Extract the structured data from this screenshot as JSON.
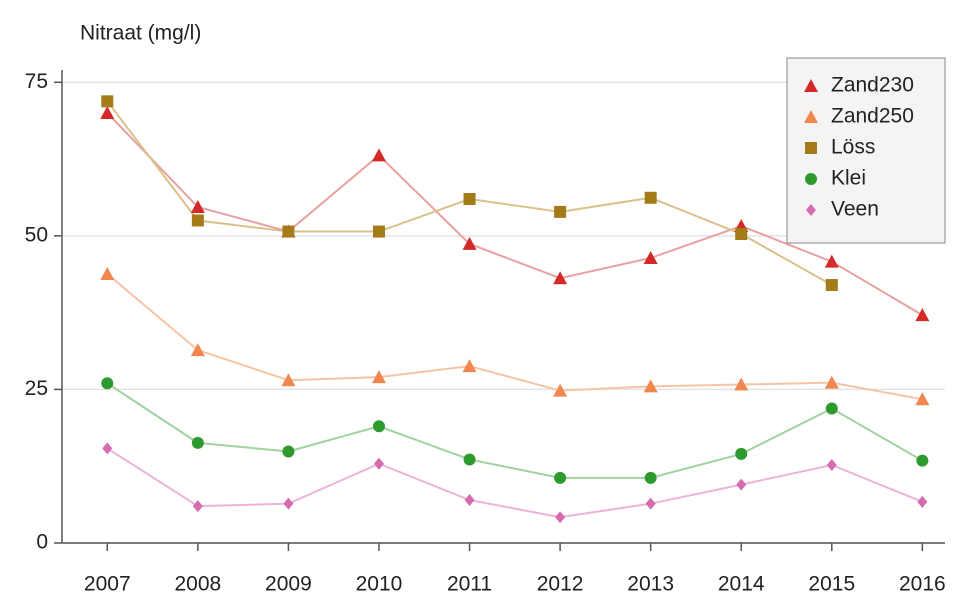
{
  "chart_data": {
    "type": "line",
    "ylabel": "Nitraat (mg/l)",
    "x": [
      2007,
      2008,
      2009,
      2010,
      2011,
      2012,
      2013,
      2014,
      2015,
      2016
    ],
    "xlim": [
      2006.5,
      2016.25
    ],
    "xticks": [
      2007,
      2008,
      2009,
      2010,
      2011,
      2012,
      2013,
      2014,
      2015,
      2016
    ],
    "ylim": [
      0,
      77
    ],
    "yticks": [
      0,
      25,
      50,
      75
    ],
    "grid": true,
    "legend": "upper right",
    "series": [
      {
        "name": "Zand230",
        "color": "#d42a2a",
        "line_color": "#e8a0a0",
        "marker": "triangle",
        "values": [
          70,
          54.7,
          50.7,
          63.1,
          48.7,
          43.1,
          46.4,
          51.6,
          45.8,
          37.1
        ]
      },
      {
        "name": "Zand250",
        "color": "#f0874e",
        "line_color": "#f6c4a4",
        "marker": "triangle",
        "values": [
          43.8,
          31.4,
          26.5,
          27,
          28.8,
          24.8,
          25.5,
          25.8,
          26.1,
          23.4
        ]
      },
      {
        "name": "Löss",
        "color": "#a47b18",
        "line_color": "#d8c28a",
        "marker": "square",
        "values": [
          71.9,
          52.5,
          50.7,
          50.7,
          56,
          53.9,
          56.2,
          50.3,
          42,
          null
        ]
      },
      {
        "name": "Klei",
        "color": "#2e9a2e",
        "line_color": "#9fd39f",
        "marker": "circle",
        "values": [
          26,
          16.3,
          14.9,
          19,
          13.6,
          10.6,
          10.6,
          14.5,
          21.9,
          13.4
        ]
      },
      {
        "name": "Veen",
        "color": "#d66bb0",
        "line_color": "#ecb4d8",
        "marker": "diamond",
        "values": [
          15.4,
          6,
          6.4,
          12.9,
          7,
          4.2,
          6.4,
          9.5,
          12.7,
          6.7
        ]
      }
    ]
  }
}
